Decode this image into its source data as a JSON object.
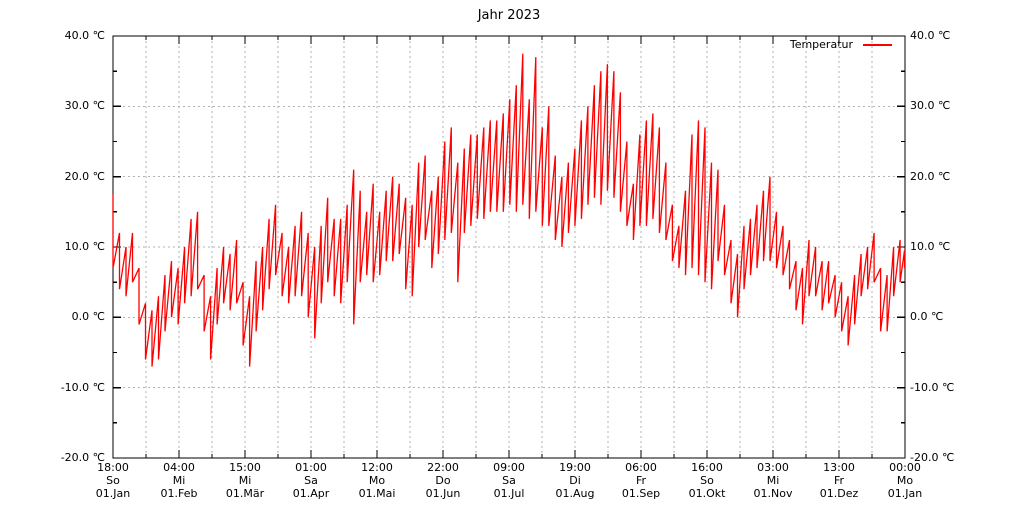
{
  "legend": {
    "label": "Temperatur",
    "color": "#ff0000"
  },
  "chart_data": {
    "type": "line",
    "title": "Jahr 2023",
    "series_name": "Temperatur",
    "unit": "℃",
    "line_color": "#ff0000",
    "grid_color": "#b2b2b2",
    "background": "#ffffff",
    "grid": true,
    "legend_position": "top-right",
    "ylim": [
      -20,
      40
    ],
    "y_major_step": 10,
    "y_minor_step": 5,
    "y_tick_labels": [
      "40.0 ℃",
      "30.0 ℃",
      "20.0 ℃",
      "10.0 ℃",
      "0.0 ℃",
      "-10.0 ℃",
      "-20.0 ℃"
    ],
    "x_range_days": 365.25,
    "x_ticks": [
      {
        "time": "18:00",
        "day": "So",
        "date": "01.Jan"
      },
      {
        "time": "04:00",
        "day": "Mi",
        "date": "01.Feb"
      },
      {
        "time": "15:00",
        "day": "Mi",
        "date": "01.Mär"
      },
      {
        "time": "01:00",
        "day": "Sa",
        "date": "01.Apr"
      },
      {
        "time": "12:00",
        "day": "Mo",
        "date": "01.Mai"
      },
      {
        "time": "22:00",
        "day": "Do",
        "date": "01.Jun"
      },
      {
        "time": "09:00",
        "day": "Sa",
        "date": "01.Jul"
      },
      {
        "time": "19:00",
        "day": "Di",
        "date": "01.Aug"
      },
      {
        "time": "06:00",
        "day": "Fr",
        "date": "01.Sep"
      },
      {
        "time": "16:00",
        "day": "So",
        "date": "01.Okt"
      },
      {
        "time": "03:00",
        "day": "Mi",
        "date": "01.Nov"
      },
      {
        "time": "13:00",
        "day": "Fr",
        "date": "01.Dez"
      },
      {
        "time": "00:00",
        "day": "Mo",
        "date": "01.Jan"
      }
    ],
    "data_day_low_high": [
      [
        0,
        7,
        17.5
      ],
      [
        3,
        4,
        12
      ],
      [
        6,
        3,
        10
      ],
      [
        9,
        5,
        12
      ],
      [
        12,
        -1,
        7
      ],
      [
        15,
        -6,
        2
      ],
      [
        18,
        -7,
        1
      ],
      [
        21,
        -6,
        3
      ],
      [
        24,
        -2,
        6
      ],
      [
        27,
        0,
        8
      ],
      [
        30,
        -1,
        7
      ],
      [
        33,
        2,
        10
      ],
      [
        36,
        3,
        14
      ],
      [
        39,
        4,
        15
      ],
      [
        42,
        -2,
        6
      ],
      [
        45,
        -6,
        3
      ],
      [
        48,
        -1,
        7
      ],
      [
        51,
        2,
        10
      ],
      [
        54,
        1,
        9
      ],
      [
        57,
        2,
        11
      ],
      [
        60,
        -4,
        5
      ],
      [
        63,
        -7,
        3
      ],
      [
        66,
        -2,
        8
      ],
      [
        69,
        1,
        10
      ],
      [
        72,
        4,
        14
      ],
      [
        75,
        6,
        16
      ],
      [
        78,
        3,
        12
      ],
      [
        81,
        2,
        10
      ],
      [
        84,
        3,
        13
      ],
      [
        87,
        3,
        15
      ],
      [
        90,
        0,
        12
      ],
      [
        93,
        -3,
        10
      ],
      [
        96,
        2,
        13
      ],
      [
        99,
        5,
        17
      ],
      [
        102,
        3,
        14
      ],
      [
        105,
        2,
        14
      ],
      [
        108,
        5,
        16
      ],
      [
        111,
        -1,
        21
      ],
      [
        114,
        5,
        18
      ],
      [
        117,
        6,
        15
      ],
      [
        120,
        5,
        19
      ],
      [
        123,
        6,
        15
      ],
      [
        126,
        8,
        18
      ],
      [
        129,
        8,
        20
      ],
      [
        132,
        9,
        19
      ],
      [
        135,
        4,
        17
      ],
      [
        138,
        3,
        16
      ],
      [
        141,
        10,
        22
      ],
      [
        144,
        11,
        23
      ],
      [
        147,
        7,
        18
      ],
      [
        150,
        9,
        20
      ],
      [
        153,
        11,
        25
      ],
      [
        156,
        12,
        27
      ],
      [
        159,
        5,
        22
      ],
      [
        162,
        12,
        24
      ],
      [
        165,
        13,
        26
      ],
      [
        168,
        14,
        26
      ],
      [
        171,
        14,
        27
      ],
      [
        174,
        15,
        28
      ],
      [
        177,
        15,
        28
      ],
      [
        180,
        15,
        29
      ],
      [
        183,
        16,
        31
      ],
      [
        186,
        15,
        33
      ],
      [
        189,
        16,
        37.5
      ],
      [
        192,
        14,
        31
      ],
      [
        195,
        15,
        37
      ],
      [
        198,
        13,
        27
      ],
      [
        201,
        13,
        30
      ],
      [
        204,
        11,
        23
      ],
      [
        207,
        10,
        20
      ],
      [
        210,
        12,
        22
      ],
      [
        213,
        13,
        24
      ],
      [
        216,
        14,
        28
      ],
      [
        219,
        16,
        30
      ],
      [
        222,
        17,
        33
      ],
      [
        225,
        16,
        35
      ],
      [
        228,
        18,
        36
      ],
      [
        231,
        17,
        35
      ],
      [
        234,
        15,
        32
      ],
      [
        237,
        13,
        25
      ],
      [
        240,
        11,
        19
      ],
      [
        243,
        13,
        26
      ],
      [
        246,
        13,
        28
      ],
      [
        249,
        14,
        29
      ],
      [
        252,
        12,
        27
      ],
      [
        255,
        11,
        22
      ],
      [
        258,
        8,
        16
      ],
      [
        261,
        7,
        13
      ],
      [
        264,
        6,
        18
      ],
      [
        267,
        7,
        26
      ],
      [
        270,
        6,
        28
      ],
      [
        273,
        5,
        27
      ],
      [
        276,
        4,
        22
      ],
      [
        279,
        8,
        21
      ],
      [
        282,
        6,
        16
      ],
      [
        285,
        2,
        11
      ],
      [
        288,
        0,
        9
      ],
      [
        291,
        4,
        13
      ],
      [
        294,
        6,
        14
      ],
      [
        297,
        7,
        16
      ],
      [
        300,
        8,
        18
      ],
      [
        303,
        8,
        20
      ],
      [
        306,
        7,
        15
      ],
      [
        309,
        6,
        13
      ],
      [
        312,
        4,
        11
      ],
      [
        315,
        1,
        8
      ],
      [
        318,
        -1,
        7
      ],
      [
        321,
        3,
        11
      ],
      [
        324,
        3,
        10
      ],
      [
        327,
        1,
        8
      ],
      [
        330,
        2,
        8
      ],
      [
        333,
        0,
        6
      ],
      [
        336,
        -2,
        5
      ],
      [
        339,
        -4,
        3
      ],
      [
        342,
        -1,
        6
      ],
      [
        345,
        3,
        9
      ],
      [
        348,
        4,
        10
      ],
      [
        351,
        5,
        12
      ],
      [
        354,
        -2,
        7
      ],
      [
        357,
        -2,
        6
      ],
      [
        360,
        3,
        10
      ],
      [
        363,
        5,
        11
      ],
      [
        365,
        7,
        9.5
      ]
    ]
  }
}
